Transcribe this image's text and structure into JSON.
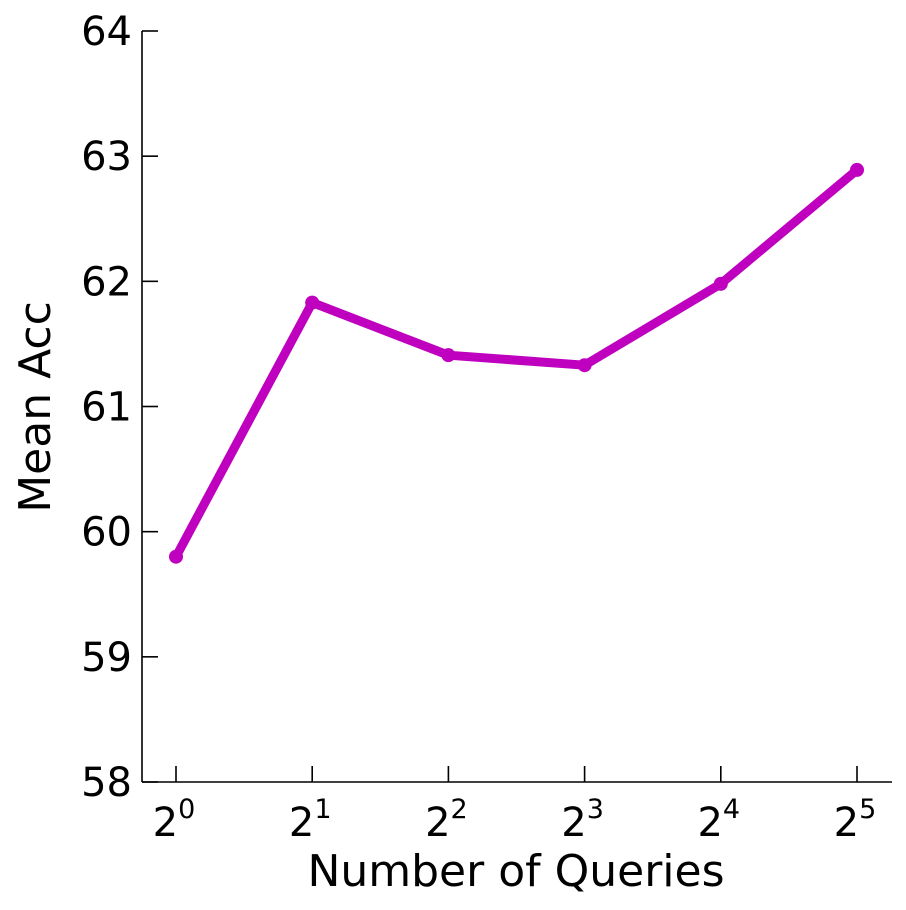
{
  "chart_data": {
    "type": "line",
    "title": "",
    "xlabel": "Number of Queries",
    "ylabel": "Mean Acc",
    "x": [
      1,
      2,
      4,
      8,
      16,
      32
    ],
    "x_tick_labels": [
      {
        "base": "2",
        "exp": "0"
      },
      {
        "base": "2",
        "exp": "1"
      },
      {
        "base": "2",
        "exp": "2"
      },
      {
        "base": "2",
        "exp": "3"
      },
      {
        "base": "2",
        "exp": "4"
      },
      {
        "base": "2",
        "exp": "5"
      }
    ],
    "x_scale": "log2",
    "y_ticks": [
      "58",
      "59",
      "60",
      "61",
      "62",
      "63",
      "64"
    ],
    "ylim": [
      58,
      64
    ],
    "series": [
      {
        "values": [
          59.8,
          61.83,
          61.41,
          61.33,
          61.98,
          62.89
        ],
        "color": "#bf00bf"
      }
    ],
    "grid": false,
    "legend": "none"
  }
}
